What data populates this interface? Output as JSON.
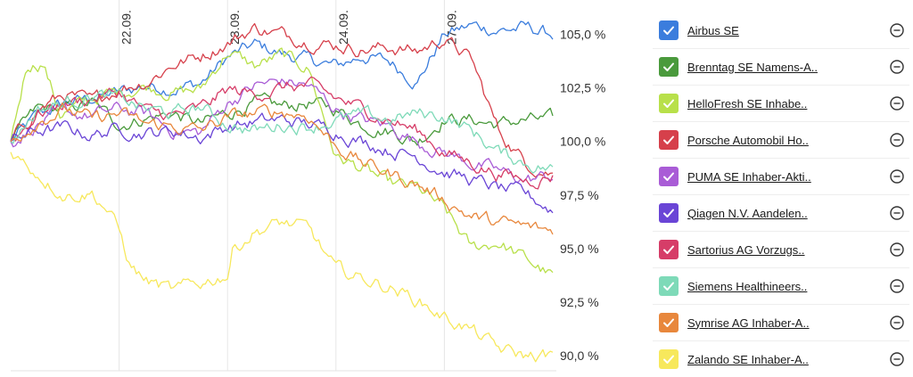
{
  "chart_data": {
    "type": "line",
    "y_unit": "%",
    "ylim": [
      89.3,
      106.6
    ],
    "y_ticks": [
      "105,0 %",
      "102,5 %",
      "100,0 %",
      "97,5 %",
      "95,0 %",
      "92,5 %",
      "90,0 %"
    ],
    "y_tick_values": [
      105,
      102.5,
      100,
      97.5,
      95,
      92.5,
      90
    ],
    "date_labels": [
      "22.09.",
      "23.09.",
      "24.09.",
      "27.09."
    ],
    "x_range": [
      0,
      5
    ],
    "day_boundaries": [
      1,
      2,
      3,
      4
    ],
    "grid": true,
    "series": [
      {
        "name": "Airbus SE",
        "color": "#3b7ddd",
        "points": [
          [
            0,
            100.0
          ],
          [
            0.25,
            101.2
          ],
          [
            0.5,
            101.8
          ],
          [
            0.75,
            102.0
          ],
          [
            1.0,
            102.3
          ],
          [
            1.25,
            102.6
          ],
          [
            1.5,
            102.5
          ],
          [
            1.75,
            102.7
          ],
          [
            2.0,
            103.9
          ],
          [
            2.25,
            104.5
          ],
          [
            2.5,
            104.1
          ],
          [
            2.75,
            103.8
          ],
          [
            3.0,
            103.5
          ],
          [
            3.25,
            104.0
          ],
          [
            3.5,
            103.7
          ],
          [
            3.75,
            102.8
          ],
          [
            4.0,
            105.0
          ],
          [
            4.25,
            105.4
          ],
          [
            4.5,
            105.2
          ],
          [
            4.75,
            105.3
          ],
          [
            5.0,
            105.0
          ]
        ]
      },
      {
        "name": "Brenntag SE Namens-A..",
        "color": "#4a9a3c",
        "points": [
          [
            0,
            100.0
          ],
          [
            0.25,
            101.5
          ],
          [
            0.5,
            101.5
          ],
          [
            0.75,
            101.8
          ],
          [
            1.0,
            100.8
          ],
          [
            1.25,
            101.1
          ],
          [
            1.5,
            101.3
          ],
          [
            1.75,
            100.8
          ],
          [
            2.0,
            101.3
          ],
          [
            2.25,
            101.8
          ],
          [
            2.5,
            101.6
          ],
          [
            2.75,
            101.8
          ],
          [
            3.0,
            101.5
          ],
          [
            3.25,
            100.8
          ],
          [
            3.5,
            100.5
          ],
          [
            3.75,
            100.0
          ],
          [
            4.0,
            101.1
          ],
          [
            4.25,
            101.0
          ],
          [
            4.5,
            100.8
          ],
          [
            4.75,
            101.0
          ],
          [
            5.0,
            101.0
          ]
        ]
      },
      {
        "name": "HelloFresh SE Inhabe..",
        "color": "#b8e04a",
        "points": [
          [
            0,
            100.0
          ],
          [
            0.15,
            103.6
          ],
          [
            0.3,
            103.7
          ],
          [
            0.45,
            101.3
          ],
          [
            0.6,
            101.6
          ],
          [
            0.75,
            102.0
          ],
          [
            1.0,
            102.3
          ],
          [
            1.25,
            102.6
          ],
          [
            1.5,
            102.3
          ],
          [
            1.75,
            102.4
          ],
          [
            2.0,
            104.2
          ],
          [
            2.25,
            103.5
          ],
          [
            2.5,
            104.0
          ],
          [
            2.75,
            103.4
          ],
          [
            3.0,
            99.3
          ],
          [
            3.25,
            98.7
          ],
          [
            3.5,
            98.0
          ],
          [
            3.75,
            97.8
          ],
          [
            4.0,
            96.8
          ],
          [
            4.25,
            95.0
          ],
          [
            4.5,
            95.3
          ],
          [
            4.75,
            94.5
          ],
          [
            5.0,
            93.7
          ]
        ]
      },
      {
        "name": "Porsche Automobil Ho..",
        "color": "#d6404b",
        "points": [
          [
            0,
            100.0
          ],
          [
            0.25,
            101.5
          ],
          [
            0.5,
            102.2
          ],
          [
            0.75,
            101.8
          ],
          [
            1.0,
            102.5
          ],
          [
            1.25,
            102.8
          ],
          [
            1.5,
            103.6
          ],
          [
            1.75,
            104.0
          ],
          [
            2.0,
            104.6
          ],
          [
            2.25,
            105.3
          ],
          [
            2.5,
            105.0
          ],
          [
            2.75,
            104.7
          ],
          [
            3.0,
            104.5
          ],
          [
            3.25,
            104.3
          ],
          [
            3.5,
            104.4
          ],
          [
            3.75,
            104.2
          ],
          [
            4.0,
            104.8
          ],
          [
            4.25,
            103.8
          ],
          [
            4.5,
            100.5
          ],
          [
            4.75,
            99.0
          ],
          [
            5.0,
            98.5
          ]
        ]
      },
      {
        "name": "PUMA SE Inhaber-Akti..",
        "color": "#a95cd6",
        "points": [
          [
            0,
            100.0
          ],
          [
            0.25,
            100.8
          ],
          [
            0.5,
            101.3
          ],
          [
            0.75,
            101.2
          ],
          [
            1.0,
            101.5
          ],
          [
            1.25,
            101.3
          ],
          [
            1.5,
            100.5
          ],
          [
            1.75,
            100.4
          ],
          [
            2.0,
            101.8
          ],
          [
            2.25,
            102.6
          ],
          [
            2.5,
            102.8
          ],
          [
            2.75,
            102.6
          ],
          [
            3.0,
            101.5
          ],
          [
            3.25,
            101.0
          ],
          [
            3.5,
            100.7
          ],
          [
            3.75,
            100.0
          ],
          [
            4.0,
            99.5
          ],
          [
            4.25,
            99.0
          ],
          [
            4.5,
            98.6
          ],
          [
            4.75,
            98.2
          ],
          [
            5.0,
            98.4
          ]
        ]
      },
      {
        "name": "Qiagen N.V. Aandelen..",
        "color": "#6a45d6",
        "points": [
          [
            0,
            100.0
          ],
          [
            0.25,
            100.5
          ],
          [
            0.5,
            100.6
          ],
          [
            0.75,
            100.3
          ],
          [
            1.0,
            100.6
          ],
          [
            1.25,
            100.4
          ],
          [
            1.5,
            100.5
          ],
          [
            1.75,
            100.2
          ],
          [
            2.0,
            100.7
          ],
          [
            2.25,
            100.9
          ],
          [
            2.5,
            101.0
          ],
          [
            2.75,
            100.8
          ],
          [
            3.0,
            100.5
          ],
          [
            3.25,
            100.0
          ],
          [
            3.5,
            99.6
          ],
          [
            3.75,
            99.3
          ],
          [
            4.0,
            98.6
          ],
          [
            4.25,
            98.2
          ],
          [
            4.5,
            97.8
          ],
          [
            4.75,
            97.5
          ],
          [
            5.0,
            96.8
          ]
        ]
      },
      {
        "name": "Sartorius AG Vorzugs..",
        "color": "#d63d68",
        "points": [
          [
            0,
            100.0
          ],
          [
            0.25,
            101.3
          ],
          [
            0.5,
            101.8
          ],
          [
            0.75,
            102.0
          ],
          [
            1.0,
            102.3
          ],
          [
            1.25,
            101.4
          ],
          [
            1.5,
            101.2
          ],
          [
            1.75,
            101.5
          ],
          [
            2.0,
            102.4
          ],
          [
            2.25,
            102.2
          ],
          [
            2.5,
            102.5
          ],
          [
            2.75,
            102.6
          ],
          [
            3.0,
            102.0
          ],
          [
            3.25,
            101.5
          ],
          [
            3.5,
            101.0
          ],
          [
            3.75,
            100.5
          ],
          [
            4.0,
            99.5
          ],
          [
            4.25,
            99.0
          ],
          [
            4.5,
            98.5
          ],
          [
            4.75,
            98.2
          ],
          [
            5.0,
            98.4
          ]
        ]
      },
      {
        "name": "Siemens Healthineers..",
        "color": "#7edab8",
        "points": [
          [
            0,
            100.0
          ],
          [
            0.25,
            101.5
          ],
          [
            0.5,
            101.8
          ],
          [
            0.75,
            102.2
          ],
          [
            1.0,
            102.0
          ],
          [
            1.25,
            101.5
          ],
          [
            1.5,
            101.3
          ],
          [
            1.75,
            101.6
          ],
          [
            2.0,
            100.8
          ],
          [
            2.25,
            100.5
          ],
          [
            2.5,
            100.8
          ],
          [
            2.75,
            100.7
          ],
          [
            3.0,
            101.0
          ],
          [
            3.25,
            101.2
          ],
          [
            3.5,
            101.0
          ],
          [
            3.75,
            101.3
          ],
          [
            4.0,
            101.2
          ],
          [
            4.25,
            100.5
          ],
          [
            4.5,
            99.5
          ],
          [
            4.75,
            99.0
          ],
          [
            5.0,
            98.7
          ]
        ]
      },
      {
        "name": "Symrise AG Inhaber-A..",
        "color": "#e8873c",
        "points": [
          [
            0,
            100.0
          ],
          [
            0.25,
            101.0
          ],
          [
            0.5,
            101.5
          ],
          [
            0.75,
            101.0
          ],
          [
            1.0,
            101.3
          ],
          [
            1.25,
            100.8
          ],
          [
            1.5,
            100.7
          ],
          [
            1.75,
            100.5
          ],
          [
            2.0,
            101.1
          ],
          [
            2.25,
            101.3
          ],
          [
            2.5,
            101.4
          ],
          [
            2.75,
            101.2
          ],
          [
            3.0,
            99.8
          ],
          [
            3.25,
            99.0
          ],
          [
            3.5,
            98.5
          ],
          [
            3.75,
            98.0
          ],
          [
            4.0,
            97.3
          ],
          [
            4.25,
            96.5
          ],
          [
            4.5,
            96.2
          ],
          [
            4.75,
            96.0
          ],
          [
            5.0,
            95.8
          ]
        ]
      },
      {
        "name": "Zalando SE Inhaber-A..",
        "color": "#f7e85c",
        "points": [
          [
            0,
            99.5
          ],
          [
            0.25,
            98.5
          ],
          [
            0.5,
            97.5
          ],
          [
            0.75,
            97.6
          ],
          [
            0.9,
            96.8
          ],
          [
            1.0,
            95.8
          ],
          [
            1.1,
            94.2
          ],
          [
            1.25,
            93.5
          ],
          [
            1.5,
            93.0
          ],
          [
            1.75,
            93.4
          ],
          [
            2.0,
            93.8
          ],
          [
            2.05,
            95.0
          ],
          [
            2.25,
            95.8
          ],
          [
            2.5,
            96.2
          ],
          [
            2.75,
            95.9
          ],
          [
            3.0,
            94.0
          ],
          [
            3.25,
            93.6
          ],
          [
            3.5,
            93.2
          ],
          [
            3.75,
            92.6
          ],
          [
            4.0,
            91.8
          ],
          [
            4.25,
            91.2
          ],
          [
            4.5,
            90.3
          ],
          [
            4.75,
            90.0
          ],
          [
            5.0,
            90.0
          ]
        ]
      }
    ]
  },
  "legend": {
    "items": [
      {
        "label": "Airbus SE",
        "color": "#3b7ddd"
      },
      {
        "label": "Brenntag SE Namens-A..",
        "color": "#4a9a3c"
      },
      {
        "label": "HelloFresh SE Inhabe..",
        "color": "#b8e04a"
      },
      {
        "label": "Porsche Automobil Ho..",
        "color": "#d6404b"
      },
      {
        "label": "PUMA SE Inhaber-Akti..",
        "color": "#a95cd6"
      },
      {
        "label": "Qiagen N.V. Aandelen..",
        "color": "#6a45d6"
      },
      {
        "label": "Sartorius AG Vorzugs..",
        "color": "#d63d68"
      },
      {
        "label": "Siemens Healthineers..",
        "color": "#7edab8"
      },
      {
        "label": "Symrise AG Inhaber-A..",
        "color": "#e8873c"
      },
      {
        "label": "Zalando SE Inhaber-A..",
        "color": "#f7e85c"
      }
    ]
  }
}
